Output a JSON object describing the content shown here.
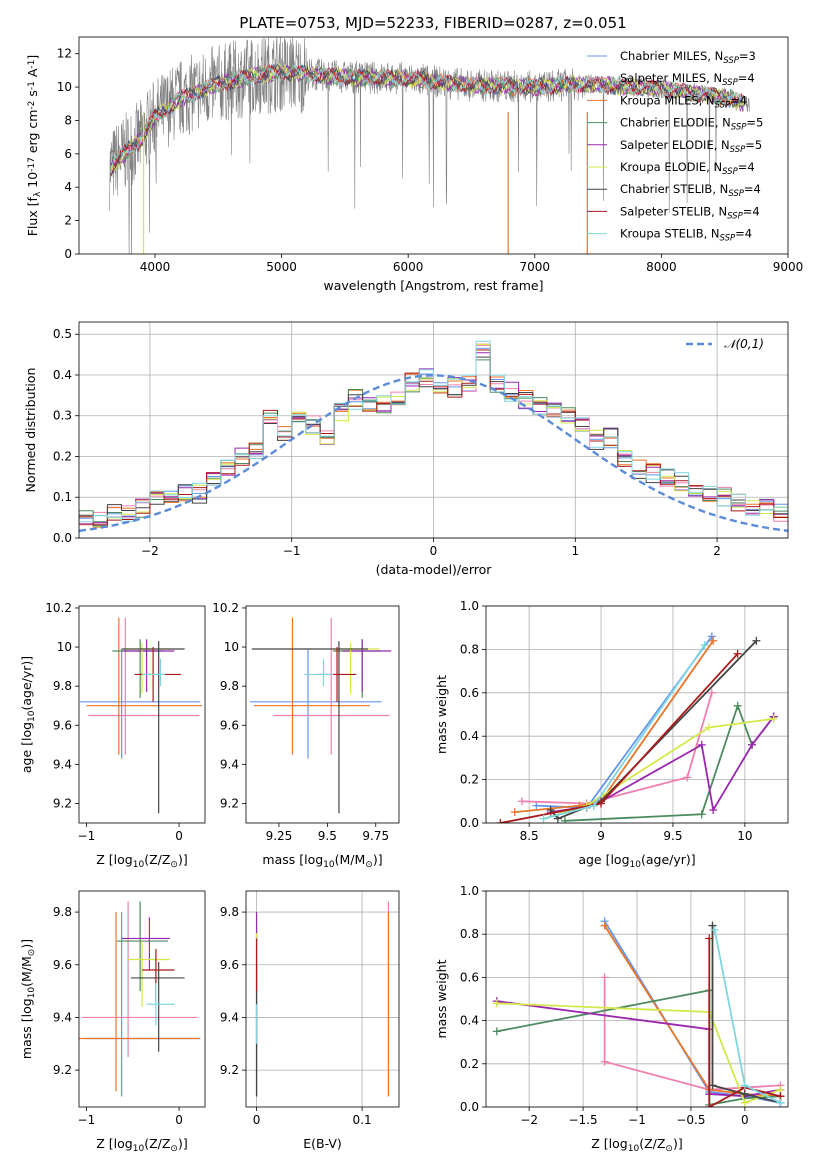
{
  "figure_title": "PLATE=0753, MJD=52233, FIBERID=0287, z=0.051",
  "chart_data": [
    {
      "id": "spectrum",
      "type": "line",
      "xlabel": "wavelength [Angstrom, rest frame]",
      "ylabel": "Flux [f_λ 10^{-17} erg cm^{-2} s^{-1} A^{-1}]",
      "xlim": [
        3400,
        9000
      ],
      "ylim": [
        0,
        13
      ],
      "xticks": [
        4000,
        5000,
        6000,
        7000,
        8000,
        9000
      ],
      "yticks": [
        0,
        2,
        4,
        6,
        8,
        10,
        12
      ],
      "data_color": "#808080",
      "data_profile": {
        "x": [
          3640,
          3700,
          3800,
          3900,
          4000,
          4200,
          4500,
          4800,
          5000,
          5500,
          6000,
          6500,
          7000,
          7400,
          8000,
          8500,
          8700
        ],
        "y": [
          5.0,
          5.6,
          6.3,
          7.0,
          8.2,
          9.3,
          10.2,
          10.7,
          10.9,
          10.6,
          10.5,
          10.1,
          10.0,
          10.2,
          9.9,
          9.4,
          8.9
        ]
      },
      "series": [
        {
          "name": "Chabrier MILES",
          "nssp": "3",
          "color": "#6495ed"
        },
        {
          "name": "Salpeter MILES",
          "nssp": "4",
          "color": "#f080b0"
        },
        {
          "name": "Kroupa MILES",
          "nssp": "4",
          "color": "#e8762b"
        },
        {
          "name": "Chabrier ELODIE",
          "nssp": "5",
          "color": "#4b8b5e"
        },
        {
          "name": "Salpeter ELODIE",
          "nssp": "5",
          "color": "#9b27b0"
        },
        {
          "name": "Kroupa ELODIE",
          "nssp": "4",
          "color": "#d4e84a"
        },
        {
          "name": "Chabrier STELIB",
          "nssp": "4",
          "color": "#444444"
        },
        {
          "name": "Salpeter STELIB",
          "nssp": "4",
          "color": "#aa1a1a"
        },
        {
          "name": "Kroupa STELIB",
          "nssp": "4",
          "color": "#7fd6e0"
        }
      ]
    },
    {
      "id": "residuals",
      "type": "line",
      "xlabel": "(data-model)/error",
      "ylabel": "Normed distribution",
      "xlim": [
        -2.5,
        2.5
      ],
      "ylim": [
        0,
        0.53
      ],
      "xticks": [
        -2,
        -1,
        0,
        1,
        2
      ],
      "yticks": [
        0.0,
        0.1,
        0.2,
        0.3,
        0.4,
        0.5
      ],
      "grid": true,
      "legend": "top-right",
      "reference": {
        "name": "𝒩(0,1)",
        "color": "#5b8bd9",
        "style": "dashed"
      },
      "bin_width": 0.1,
      "hist_profile": [
        0.03,
        0.03,
        0.03,
        0.025,
        0.035,
        0.055,
        0.05,
        0.06,
        0.065,
        0.075,
        0.1,
        0.11,
        0.11,
        0.11,
        0.15,
        0.17,
        0.2,
        0.21,
        0.3,
        0.26,
        0.31,
        0.275,
        0.25,
        0.31,
        0.34,
        0.325,
        0.33,
        0.35,
        0.38,
        0.39,
        0.38,
        0.37,
        0.38,
        0.46,
        0.38,
        0.36,
        0.34,
        0.32,
        0.32,
        0.295,
        0.28,
        0.24,
        0.245,
        0.2,
        0.17,
        0.16,
        0.15,
        0.14,
        0.125,
        0.115,
        0.1,
        0.09,
        0.08,
        0.07,
        0.065,
        0.055,
        0.05,
        0.045,
        0.04,
        0.035,
        0.03,
        0.025
      ]
    },
    {
      "id": "age_vs_Z",
      "type": "scatter",
      "xlabel": "Z [log_10(Z/Z_⊙)]",
      "ylabel": "age  [log_10(age/yr)]",
      "xlim": [
        -1.08,
        0.28
      ],
      "ylim": [
        9.1,
        10.21
      ],
      "xticks": [
        -1,
        0
      ],
      "yticks": [
        9.2,
        9.4,
        9.6,
        9.8,
        10.0,
        10.2
      ],
      "points": [
        {
          "x": -0.62,
          "y": 9.72,
          "xerr": [
            0.45,
            0.85
          ],
          "yerr": [
            0.29,
            0.27
          ],
          "color": "#6495ed"
        },
        {
          "x": -0.58,
          "y": 9.65,
          "xerr": [
            0.4,
            0.8
          ],
          "yerr": [
            0.2,
            0.5
          ],
          "color": "#f080b0"
        },
        {
          "x": -0.65,
          "y": 9.7,
          "xerr": [
            0.35,
            0.9
          ],
          "yerr": [
            0.25,
            0.45
          ],
          "color": "#e8762b"
        },
        {
          "x": -0.42,
          "y": 9.98,
          "xerr": [
            0.3,
            0.25
          ],
          "yerr": [
            0.24,
            0.06
          ],
          "color": "#4b8b5e"
        },
        {
          "x": -0.35,
          "y": 9.98,
          "xerr": [
            0.25,
            0.3
          ],
          "yerr": [
            0.21,
            0.06
          ],
          "color": "#9b27b0"
        },
        {
          "x": -0.4,
          "y": 9.99,
          "xerr": [
            0.2,
            0.3
          ],
          "yerr": [
            0.23,
            0.03
          ],
          "color": "#d4e84a"
        },
        {
          "x": -0.22,
          "y": 9.99,
          "xerr": [
            0.4,
            0.28
          ],
          "yerr": [
            0.84,
            0.04
          ],
          "color": "#444444"
        },
        {
          "x": -0.28,
          "y": 9.86,
          "xerr": [
            0.2,
            0.3
          ],
          "yerr": [
            0.14,
            0.14
          ],
          "color": "#aa1a1a"
        },
        {
          "x": -0.2,
          "y": 9.86,
          "xerr": [
            0.2,
            0.05
          ],
          "yerr": [
            0.06,
            0.08
          ],
          "color": "#7fd6e0"
        }
      ]
    },
    {
      "id": "age_vs_mass",
      "type": "scatter",
      "xlabel": "mass [log_10(M/M_⊙)]",
      "ylabel": "",
      "xlim": [
        9.08,
        9.87
      ],
      "ylim": [
        9.1,
        10.21
      ],
      "xticks": [
        9.25,
        9.5,
        9.75
      ],
      "yticks": [
        9.2,
        9.4,
        9.6,
        9.8,
        10.0,
        10.2
      ],
      "points": [
        {
          "x": 9.4,
          "y": 9.72,
          "xerr": [
            0.3,
            0.38
          ],
          "yerr": [
            0.29,
            0.27
          ],
          "color": "#6495ed"
        },
        {
          "x": 9.52,
          "y": 9.65,
          "xerr": [
            0.3,
            0.3
          ],
          "yerr": [
            0.2,
            0.5
          ],
          "color": "#f080b0"
        },
        {
          "x": 9.32,
          "y": 9.7,
          "xerr": [
            0.2,
            0.4
          ],
          "yerr": [
            0.25,
            0.45
          ],
          "color": "#e8762b"
        },
        {
          "x": 9.68,
          "y": 9.98,
          "xerr": [
            0.15,
            0.1
          ],
          "yerr": [
            0.24,
            0.06
          ],
          "color": "#4b8b5e"
        },
        {
          "x": 9.68,
          "y": 9.98,
          "xerr": [
            0.1,
            0.15
          ],
          "yerr": [
            0.21,
            0.06
          ],
          "color": "#9b27b0"
        },
        {
          "x": 9.62,
          "y": 9.99,
          "xerr": [
            0.1,
            0.15
          ],
          "yerr": [
            0.23,
            0.03
          ],
          "color": "#d4e84a"
        },
        {
          "x": 9.56,
          "y": 9.99,
          "xerr": [
            0.45,
            0.15
          ],
          "yerr": [
            0.84,
            0.04
          ],
          "color": "#444444"
        },
        {
          "x": 9.55,
          "y": 9.86,
          "xerr": [
            0.1,
            0.1
          ],
          "yerr": [
            0.14,
            0.14
          ],
          "color": "#aa1a1a"
        },
        {
          "x": 9.48,
          "y": 9.86,
          "xerr": [
            0.1,
            0.05
          ],
          "yerr": [
            0.06,
            0.08
          ],
          "color": "#7fd6e0"
        }
      ]
    },
    {
      "id": "massweight_vs_age",
      "type": "line",
      "xlabel": "age  [log_10(age/yr)]",
      "ylabel": "mass weight",
      "xlim": [
        8.2,
        10.3
      ],
      "ylim": [
        0,
        1.0
      ],
      "xticks": [
        8.5,
        9.0,
        9.5,
        10.0
      ],
      "yticks": [
        0.0,
        0.2,
        0.4,
        0.6,
        0.8,
        1.0
      ],
      "grid": true,
      "series": [
        {
          "color": "#6495ed",
          "x": [
            8.55,
            8.9,
            9.77
          ],
          "y": [
            0.08,
            0.07,
            0.86
          ]
        },
        {
          "color": "#f080b0",
          "x": [
            8.45,
            8.9,
            9.6,
            9.77
          ],
          "y": [
            0.1,
            0.09,
            0.21,
            0.6
          ]
        },
        {
          "color": "#e8762b",
          "x": [
            8.4,
            8.85,
            9.0,
            9.78
          ],
          "y": [
            0.05,
            0.08,
            0.1,
            0.84
          ]
        },
        {
          "color": "#4b8b5e",
          "x": [
            8.75,
            9.7,
            9.95,
            10.05,
            10.2
          ],
          "y": [
            0.01,
            0.04,
            0.54,
            0.36,
            0.49
          ]
        },
        {
          "color": "#9b27b0",
          "x": [
            8.65,
            8.95,
            9.7,
            9.78,
            10.05,
            10.2
          ],
          "y": [
            0.05,
            0.08,
            0.36,
            0.06,
            0.36,
            0.49
          ]
        },
        {
          "color": "#d4e84a",
          "x": [
            8.6,
            8.9,
            9.75,
            10.2
          ],
          "y": [
            0.02,
            0.08,
            0.44,
            0.48
          ]
        },
        {
          "color": "#444444",
          "x": [
            8.65,
            8.7,
            9.0,
            10.08
          ],
          "y": [
            0.06,
            0.02,
            0.1,
            0.84
          ]
        },
        {
          "color": "#aa1a1a",
          "x": [
            8.3,
            9.0,
            9.95
          ],
          "y": [
            0.0,
            0.09,
            0.78
          ]
        },
        {
          "color": "#7fd6e0",
          "x": [
            8.6,
            8.95,
            9.72
          ],
          "y": [
            0.02,
            0.08,
            0.82
          ]
        }
      ]
    },
    {
      "id": "mass_vs_Z",
      "type": "scatter",
      "xlabel": "Z [log_10(Z/Z_⊙)]",
      "ylabel": "mass [log_10(M/M_⊙)]",
      "xlim": [
        -1.08,
        0.28
      ],
      "ylim": [
        9.06,
        9.88
      ],
      "xticks": [
        -1,
        0
      ],
      "yticks": [
        9.2,
        9.4,
        9.6,
        9.8
      ],
      "points": [
        {
          "x": -0.62,
          "y": 9.32,
          "xerr": [
            0.4,
            0.85
          ],
          "yerr": [
            0.22,
            0.48
          ],
          "color": "#6495ed"
        },
        {
          "x": -0.55,
          "y": 9.4,
          "xerr": [
            0.5,
            0.75
          ],
          "yerr": [
            0.15,
            0.44
          ],
          "color": "#f080b0"
        },
        {
          "x": -0.68,
          "y": 9.32,
          "xerr": [
            0.4,
            0.9
          ],
          "yerr": [
            0.2,
            0.48
          ],
          "color": "#e8762b"
        },
        {
          "x": -0.42,
          "y": 9.69,
          "xerr": [
            0.25,
            0.3
          ],
          "yerr": [
            0.19,
            0.15
          ],
          "color": "#4b8b5e"
        },
        {
          "x": -0.32,
          "y": 9.7,
          "xerr": [
            0.3,
            0.22
          ],
          "yerr": [
            0.12,
            0.08
          ],
          "color": "#9b27b0"
        },
        {
          "x": -0.4,
          "y": 9.62,
          "xerr": [
            0.15,
            0.3
          ],
          "yerr": [
            0.18,
            0.07
          ],
          "color": "#d4e84a"
        },
        {
          "x": -0.22,
          "y": 9.55,
          "xerr": [
            0.3,
            0.28
          ],
          "yerr": [
            0.28,
            0.06
          ],
          "color": "#444444"
        },
        {
          "x": -0.25,
          "y": 9.58,
          "xerr": [
            0.15,
            0.2
          ],
          "yerr": [
            0.12,
            0.08
          ],
          "color": "#aa1a1a"
        },
        {
          "x": -0.25,
          "y": 9.45,
          "xerr": [
            0.1,
            0.2
          ],
          "yerr": [
            0.08,
            0.08
          ],
          "color": "#7fd6e0"
        }
      ]
    },
    {
      "id": "mass_vs_EBV",
      "type": "scatter",
      "xlabel": "E(B-V)",
      "ylabel": "",
      "xlim": [
        -0.01,
        0.135
      ],
      "ylim": [
        9.06,
        9.88
      ],
      "xticks": [
        0.0,
        0.1
      ],
      "yticks": [
        9.2,
        9.4,
        9.6,
        9.8
      ],
      "grid": true,
      "points": [
        {
          "x": 0.0,
          "y": 9.5,
          "yerr": [
            0.4,
            0.3
          ],
          "color": "#6495ed"
        },
        {
          "x": 0.0,
          "y": 9.55,
          "yerr": [
            0.45,
            0.25
          ],
          "color": "#9b27b0"
        },
        {
          "x": 0.0,
          "y": 9.5,
          "yerr": [
            0.4,
            0.22
          ],
          "color": "#d4e84a"
        },
        {
          "x": 0.0,
          "y": 9.45,
          "yerr": [
            0.35,
            0.15
          ],
          "color": "#444444"
        },
        {
          "x": 0.0,
          "y": 9.6,
          "yerr": [
            0.1,
            0.1
          ],
          "color": "#aa1a1a"
        },
        {
          "x": 0.0,
          "y": 9.4,
          "yerr": [
            0.1,
            0.05
          ],
          "color": "#7fd6e0"
        },
        {
          "x": 0.125,
          "y": 9.5,
          "yerr": [
            0.4,
            0.34
          ],
          "color": "#f080b0"
        },
        {
          "x": 0.125,
          "y": 9.45,
          "yerr": [
            0.35,
            0.35
          ],
          "color": "#e8762b"
        }
      ]
    },
    {
      "id": "massweight_vs_Z",
      "type": "line",
      "xlabel": "Z [log_10(Z/Z_⊙)]",
      "ylabel": "mass weight",
      "xlim": [
        -2.4,
        0.4
      ],
      "ylim": [
        0,
        1.0
      ],
      "xticks": [
        -2.0,
        -1.5,
        -1.0,
        -0.5,
        0.0
      ],
      "yticks": [
        0.0,
        0.2,
        0.4,
        0.6,
        0.8,
        1.0
      ],
      "grid": true,
      "series": [
        {
          "color": "#6495ed",
          "x": [
            -1.3,
            -0.33,
            0.0,
            0.33
          ],
          "y": [
            0.86,
            0.07,
            0.05,
            0.02
          ]
        },
        {
          "color": "#f080b0",
          "x": [
            -1.3,
            -1.3,
            -0.33,
            0.33
          ],
          "y": [
            0.6,
            0.21,
            0.08,
            0.1
          ]
        },
        {
          "color": "#e8762b",
          "x": [
            -1.3,
            -0.33,
            0.0,
            0.33
          ],
          "y": [
            0.84,
            0.08,
            0.06,
            0.05
          ]
        },
        {
          "color": "#4b8b5e",
          "x": [
            -2.3,
            -0.33,
            -0.33,
            0.0,
            0.33
          ],
          "y": [
            0.35,
            0.54,
            0.01,
            0.04,
            0.05
          ]
        },
        {
          "color": "#9b27b0",
          "x": [
            -2.3,
            -0.33,
            -0.33,
            0.0,
            0.33
          ],
          "y": [
            0.49,
            0.36,
            0.06,
            0.05,
            0.08
          ]
        },
        {
          "color": "#d4e84a",
          "x": [
            -2.3,
            -0.33,
            0.0,
            0.33
          ],
          "y": [
            0.48,
            0.44,
            0.02,
            0.08
          ]
        },
        {
          "color": "#444444",
          "x": [
            -0.3,
            -0.3,
            0.0,
            0.33
          ],
          "y": [
            0.84,
            0.1,
            0.06,
            0.02
          ]
        },
        {
          "color": "#aa1a1a",
          "x": [
            -0.33,
            -0.33,
            0.0,
            0.33
          ],
          "y": [
            0.78,
            0.0,
            0.09,
            0.05
          ]
        },
        {
          "color": "#7fd6e0",
          "x": [
            -0.28,
            0.0,
            0.33
          ],
          "y": [
            0.82,
            0.1,
            0.02
          ]
        }
      ]
    }
  ]
}
